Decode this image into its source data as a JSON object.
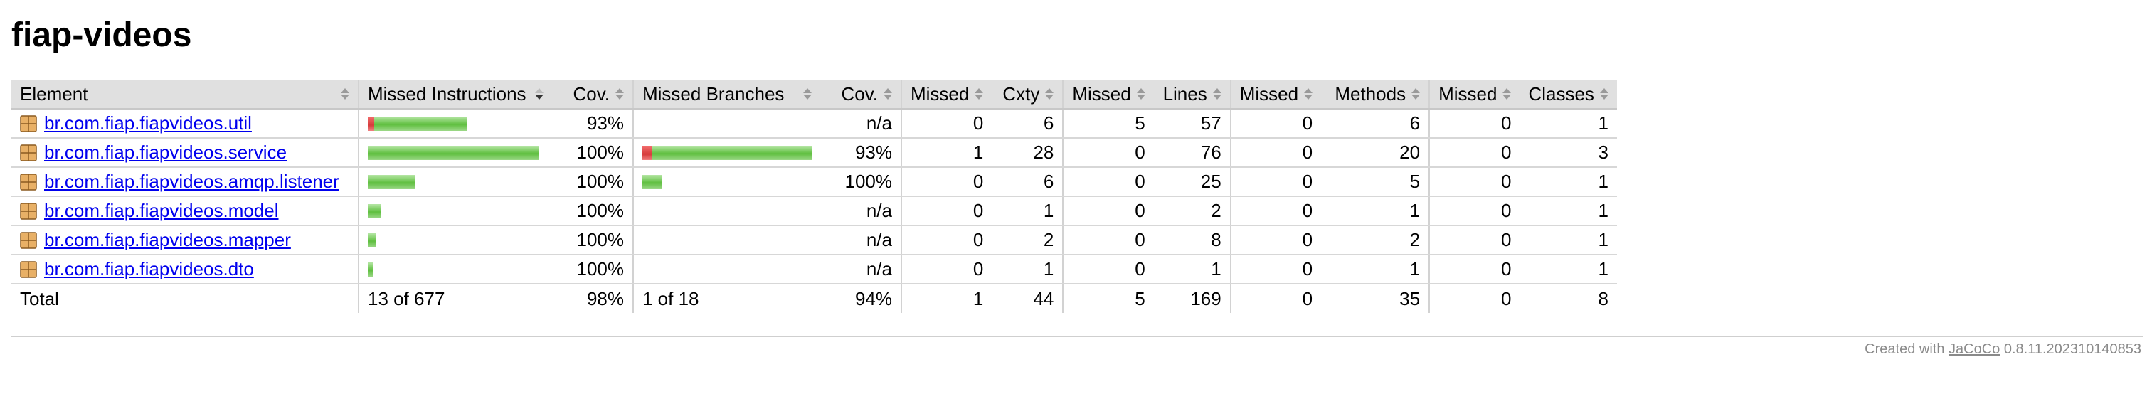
{
  "page": {
    "title": "fiap-videos"
  },
  "table": {
    "headers": {
      "element": "Element",
      "missed_instructions": "Missed Instructions",
      "instr_cov": "Cov.",
      "missed_branches": "Missed Branches",
      "branch_cov": "Cov.",
      "missed_cxty": "Missed",
      "cxty": "Cxty",
      "missed_lines": "Missed",
      "lines": "Lines",
      "missed_methods": "Missed",
      "methods": "Methods",
      "missed_classes": "Missed",
      "classes": "Classes"
    },
    "rows": [
      {
        "name": "br.com.fiap.fiapvideos.util",
        "instr_bar": {
          "missed_frac": 0.038,
          "covered_frac": 0.541
        },
        "instr_cov": "93%",
        "branch_bar": null,
        "branch_cov": "n/a",
        "missed_cxty": "0",
        "cxty": "6",
        "missed_lines": "5",
        "lines": "57",
        "missed_methods": "0",
        "methods": "6",
        "missed_classes": "0",
        "classes": "1"
      },
      {
        "name": "br.com.fiap.fiapvideos.service",
        "instr_bar": {
          "missed_frac": 0.0,
          "covered_frac": 1.0
        },
        "instr_cov": "100%",
        "branch_bar": {
          "missed_frac": 0.059,
          "covered_frac": 0.941
        },
        "branch_cov": "93%",
        "missed_cxty": "1",
        "cxty": "28",
        "missed_lines": "0",
        "lines": "76",
        "missed_methods": "0",
        "methods": "20",
        "missed_classes": "0",
        "classes": "3"
      },
      {
        "name": "br.com.fiap.fiapvideos.amqp.listener",
        "instr_bar": {
          "missed_frac": 0.0,
          "covered_frac": 0.279
        },
        "instr_cov": "100%",
        "branch_bar": {
          "missed_frac": 0.0,
          "covered_frac": 0.118
        },
        "branch_cov": "100%",
        "missed_cxty": "0",
        "cxty": "6",
        "missed_lines": "0",
        "lines": "25",
        "missed_methods": "0",
        "methods": "5",
        "missed_classes": "0",
        "classes": "1"
      },
      {
        "name": "br.com.fiap.fiapvideos.model",
        "instr_bar": {
          "missed_frac": 0.0,
          "covered_frac": 0.074
        },
        "instr_cov": "100%",
        "branch_bar": null,
        "branch_cov": "n/a",
        "missed_cxty": "0",
        "cxty": "1",
        "missed_lines": "0",
        "lines": "2",
        "missed_methods": "0",
        "methods": "1",
        "missed_classes": "0",
        "classes": "1"
      },
      {
        "name": "br.com.fiap.fiapvideos.mapper",
        "instr_bar": {
          "missed_frac": 0.0,
          "covered_frac": 0.049
        },
        "instr_cov": "100%",
        "branch_bar": null,
        "branch_cov": "n/a",
        "missed_cxty": "0",
        "cxty": "2",
        "missed_lines": "0",
        "lines": "8",
        "missed_methods": "0",
        "methods": "2",
        "missed_classes": "0",
        "classes": "1"
      },
      {
        "name": "br.com.fiap.fiapvideos.dto",
        "instr_bar": {
          "missed_frac": 0.0,
          "covered_frac": 0.033
        },
        "instr_cov": "100%",
        "branch_bar": null,
        "branch_cov": "n/a",
        "missed_cxty": "0",
        "cxty": "1",
        "missed_lines": "0",
        "lines": "1",
        "missed_methods": "0",
        "methods": "1",
        "missed_classes": "0",
        "classes": "1"
      }
    ],
    "total": {
      "label": "Total",
      "missed_instructions": "13 of 677",
      "instr_cov": "98%",
      "missed_branches": "1 of 18",
      "branch_cov": "94%",
      "missed_cxty": "1",
      "cxty": "44",
      "missed_lines": "5",
      "lines": "169",
      "missed_methods": "0",
      "methods": "35",
      "missed_classes": "0",
      "classes": "8"
    }
  },
  "footer": {
    "prefix": "Created with",
    "link": "JaCoCo",
    "version": "0.8.11.202310140853"
  },
  "colors": {
    "bar_green": "#5fbf3f",
    "bar_red": "#d63b3b",
    "header_bg": "#e0e0e0",
    "link": "#0000ee"
  },
  "icons": {
    "package": "package-icon"
  }
}
